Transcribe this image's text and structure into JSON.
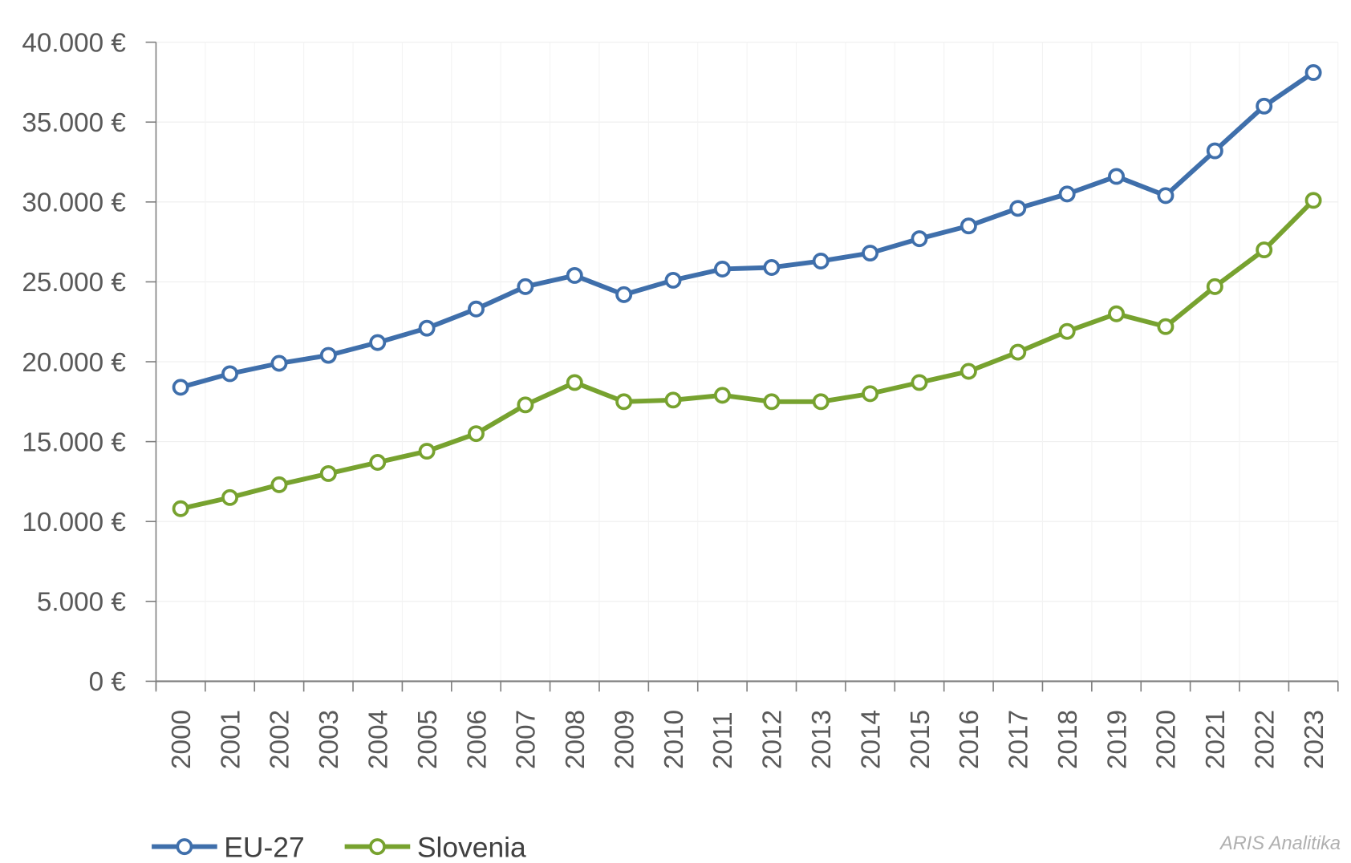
{
  "chart_data": {
    "type": "line",
    "title": "",
    "xlabel": "",
    "ylabel": "",
    "ylim": [
      0,
      40000
    ],
    "y_ticks": [
      0,
      5000,
      10000,
      15000,
      20000,
      25000,
      30000,
      35000,
      40000
    ],
    "y_tick_labels": [
      "0 €",
      "5.000 €",
      "10.000 €",
      "15.000 €",
      "20.000 €",
      "25.000 €",
      "30.000 €",
      "35.000 €",
      "40.000 €"
    ],
    "categories": [
      "2000",
      "2001",
      "2002",
      "2003",
      "2004",
      "2005",
      "2006",
      "2007",
      "2008",
      "2009",
      "2010",
      "2011",
      "2012",
      "2013",
      "2014",
      "2015",
      "2016",
      "2017",
      "2018",
      "2019",
      "2020",
      "2021",
      "2022",
      "2023"
    ],
    "grid": true,
    "legend_position": "bottom-left",
    "series": [
      {
        "name": "EU-27",
        "color": "#3f6fab",
        "values": [
          18400,
          19250,
          19900,
          20400,
          21200,
          22100,
          23300,
          24700,
          25400,
          24200,
          25100,
          25800,
          25900,
          26300,
          26800,
          27700,
          28500,
          29600,
          30500,
          31600,
          30400,
          33200,
          36000,
          38100
        ]
      },
      {
        "name": "Slovenia",
        "color": "#77a22f",
        "values": [
          10800,
          11500,
          12300,
          13000,
          13700,
          14400,
          15500,
          17300,
          18700,
          17500,
          17600,
          17900,
          17500,
          17500,
          18000,
          18700,
          19400,
          20600,
          21900,
          23000,
          22200,
          24700,
          27000,
          30100
        ]
      }
    ]
  },
  "credit": "ARIS Analitika"
}
